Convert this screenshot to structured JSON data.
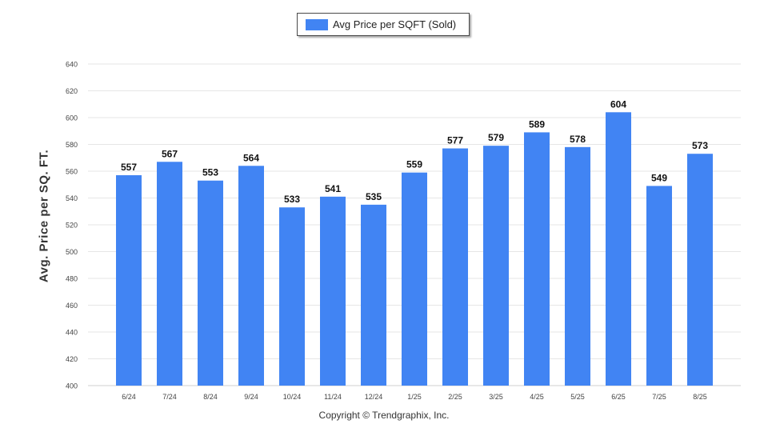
{
  "chart_data": {
    "type": "bar",
    "title": "",
    "xlabel": "",
    "ylabel": "Avg. Price per SQ. FT.",
    "ylim": [
      400,
      640
    ],
    "yticks": [
      400,
      420,
      440,
      460,
      480,
      500,
      520,
      540,
      560,
      580,
      600,
      620,
      640
    ],
    "grid": true,
    "legend_position": "top-center",
    "categories": [
      "6/24",
      "7/24",
      "8/24",
      "9/24",
      "10/24",
      "11/24",
      "12/24",
      "1/25",
      "2/25",
      "3/25",
      "4/25",
      "5/25",
      "6/25",
      "7/25",
      "8/25"
    ],
    "series": [
      {
        "name": "Avg Price per SQFT (Sold)",
        "color": "#4184f3",
        "values": [
          557,
          567,
          553,
          564,
          533,
          541,
          535,
          559,
          577,
          579,
          589,
          578,
          604,
          549,
          573
        ]
      }
    ]
  },
  "footer": {
    "copyright": "Copyright © Trendgraphix, Inc."
  }
}
